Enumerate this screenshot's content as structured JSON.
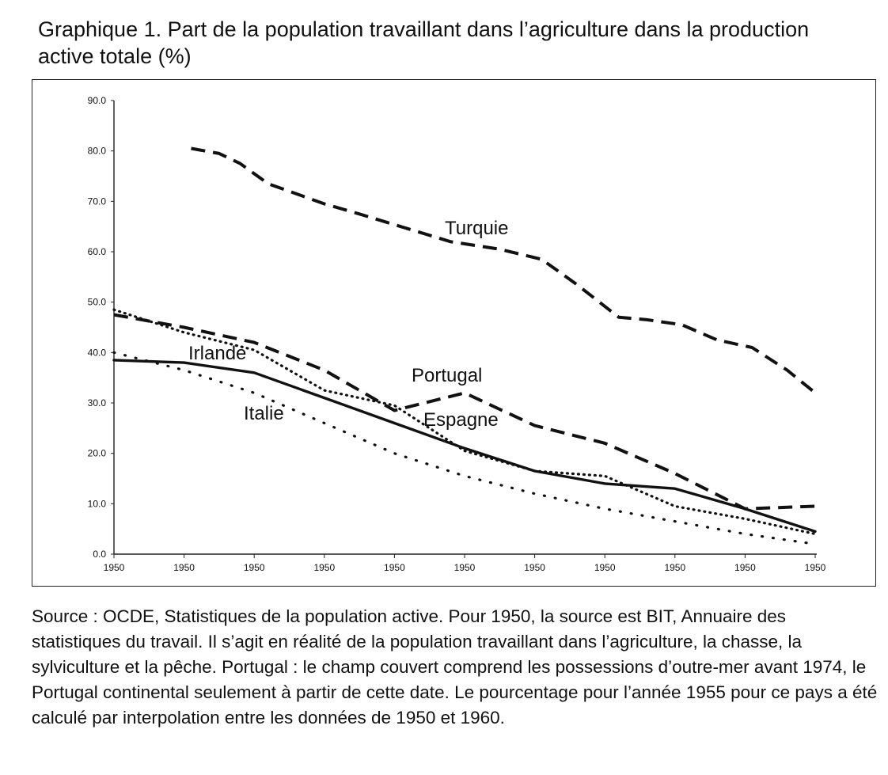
{
  "title": "Graphique 1. Part de la population travaillant dans l’agriculture dans la production active totale (%)",
  "source": "Source : OCDE, Statistiques de la population active. Pour 1950, la source est BIT, Annuaire des statistiques du travail. Il s’agit en réalité de la population travaillant dans l’agriculture, la chasse, la sylviculture et la pêche. Portugal : le champ couvert comprend les possessions d’outre-mer avant 1974, le Portugal continental seulement à partir de cette date. Le pourcentage pour l’année 1955 pour ce pays a été calculé par interpolation entre les données de 1950 et 1960.",
  "chart_data": {
    "type": "line",
    "ylim": [
      0,
      90
    ],
    "yticks": [
      "0.0",
      "10.0",
      "20.0",
      "30.0",
      "40.0",
      "50.0",
      "60.0",
      "70.0",
      "80.0",
      "90.0"
    ],
    "x_tick_labels": [
      "1950",
      "1950",
      "1950",
      "1950",
      "1950",
      "1950",
      "1950",
      "1950",
      "1950",
      "1950",
      "1950"
    ],
    "grid": false,
    "legend": "labels placed directly on lines",
    "series": [
      {
        "name": "Turquie",
        "style": "long-dash",
        "values": [
          80.5,
          79.5,
          77.5,
          73.5,
          69.5,
          67.5,
          62.0,
          60.5,
          58.5,
          53.5,
          47.0,
          46.5,
          45.5,
          42.5,
          41.0,
          36.5,
          32.0
        ],
        "x_index": [
          1.1,
          1.5,
          1.8,
          2.2,
          3.0,
          3.5,
          4.8,
          5.5,
          6.1,
          6.6,
          7.2,
          7.6,
          8.1,
          8.6,
          9.1,
          9.6,
          10.0
        ]
      },
      {
        "name": "Portugal",
        "style": "long-dash",
        "values": [
          47.5,
          45.0,
          42.0,
          36.5,
          28.5,
          32.0,
          25.5,
          22.0,
          16.0,
          9.0,
          9.5
        ],
        "x_index": [
          0.0,
          1.0,
          2.0,
          3.0,
          4.0,
          5.0,
          6.0,
          7.0,
          8.0,
          9.0,
          10.0
        ]
      },
      {
        "name": "Espagne",
        "style": "small-dot",
        "values": [
          48.5,
          44.0,
          40.5,
          32.5,
          29.5,
          20.5,
          16.5,
          15.5,
          9.5,
          7.0,
          4.0
        ],
        "x_index": [
          0.0,
          1.0,
          2.0,
          3.0,
          4.0,
          5.0,
          6.0,
          7.0,
          8.0,
          9.0,
          10.0
        ]
      },
      {
        "name": "Irlande",
        "style": "solid",
        "values": [
          38.5,
          38.0,
          36.0,
          31.0,
          26.0,
          21.0,
          16.5,
          14.0,
          13.0,
          9.0,
          4.5
        ],
        "x_index": [
          0.0,
          1.0,
          2.0,
          3.0,
          4.0,
          5.0,
          6.0,
          7.0,
          8.0,
          9.0,
          10.0
        ]
      },
      {
        "name": "Italie",
        "style": "sparse-dot",
        "values": [
          40.0,
          36.5,
          32.0,
          26.0,
          20.0,
          15.5,
          12.0,
          9.0,
          6.5,
          4.0,
          2.0
        ],
        "x_index": [
          0.0,
          1.0,
          2.0,
          3.0,
          4.0,
          5.0,
          6.0,
          7.0,
          8.0,
          9.0,
          10.0
        ]
      }
    ]
  }
}
